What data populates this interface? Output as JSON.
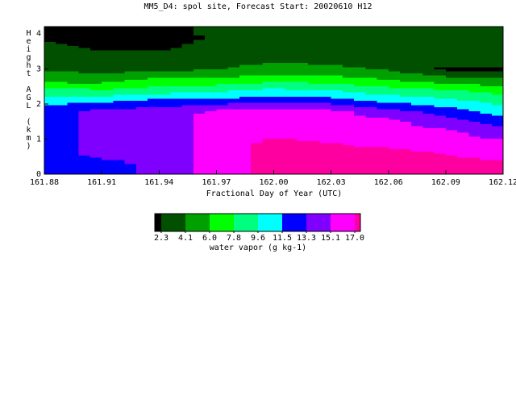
{
  "chart_data": {
    "type": "contour",
    "title": "MM5_D4: spol site,  Forecast Start: 20020610 H12",
    "xlabel": "Fractional Day of Year (UTC)",
    "ylabel": "Height AGL (km)",
    "x": [
      161.88,
      161.91,
      161.94,
      161.97,
      162.0,
      162.03,
      162.06,
      162.09,
      162.12
    ],
    "y": [
      0,
      0.3,
      0.6,
      0.9,
      1.2,
      1.5,
      1.8,
      2.1,
      2.4,
      2.7,
      3.0,
      3.3,
      3.6,
      3.9,
      4.2
    ],
    "z": [
      [
        12.5,
        12.5,
        12.5,
        12.5,
        12.5,
        12.5,
        12.5,
        10.5,
        8.5,
        5.0,
        4.0,
        3.0,
        3.0,
        2.0,
        1.5
      ],
      [
        12.5,
        12.5,
        14,
        14,
        14,
        14,
        14,
        11,
        8,
        5,
        3.5,
        3,
        2,
        1.5,
        1.5
      ],
      [
        14,
        14,
        14,
        14,
        14,
        14,
        14,
        12,
        8.5,
        6.5,
        3.5,
        3,
        2,
        1.5,
        1.5
      ],
      [
        16,
        16,
        16,
        16,
        16,
        16,
        15.5,
        12,
        9,
        6.5,
        4,
        3.2,
        3,
        2.5,
        3
      ],
      [
        17.5,
        17.5,
        17.5,
        17.5,
        16.5,
        16,
        16,
        13,
        10,
        7,
        5,
        3.5,
        3.2,
        3,
        3
      ],
      [
        17.5,
        17.5,
        17.5,
        17,
        16,
        16,
        15.5,
        12.5,
        9.5,
        7,
        4.5,
        3.5,
        3.2,
        3,
        3
      ],
      [
        17.5,
        17.5,
        17.5,
        16.5,
        16,
        15.5,
        14,
        11,
        8.5,
        6,
        4,
        3.3,
        3,
        3,
        3
      ],
      [
        17.5,
        17.5,
        17,
        16,
        15.5,
        14,
        12.5,
        10,
        8,
        5,
        2.0,
        3,
        3,
        3,
        3
      ],
      [
        17.5,
        17.5,
        16,
        15.5,
        14,
        12.5,
        10.5,
        9,
        7,
        4.5,
        2.0,
        3,
        3,
        3,
        3
      ]
    ],
    "xlim": [
      161.88,
      162.12
    ],
    "ylim": [
      0,
      4.2
    ],
    "xticks": [
      161.88,
      161.91,
      161.94,
      161.97,
      {
        "value": 162.0,
        "label": "162.00"
      },
      162.03,
      162.06,
      162.09,
      162.12
    ],
    "yticks": [
      0,
      1,
      2,
      3,
      4
    ],
    "levels": [
      2.3,
      4.1,
      {
        "value": 6.0,
        "label": "6.0"
      },
      7.8,
      9.6,
      11.5,
      13.3,
      15.1,
      {
        "value": 17.0,
        "label": "17.0"
      }
    ],
    "colors": [
      "#000000",
      "#005000",
      "#00a000",
      "#00ff00",
      "#00ff80",
      "#00ffff",
      "#0000ff",
      "#8000ff",
      "#ff00ff",
      "#ff00a0"
    ],
    "colorbar_label": "water vapor (g kg-1)"
  }
}
